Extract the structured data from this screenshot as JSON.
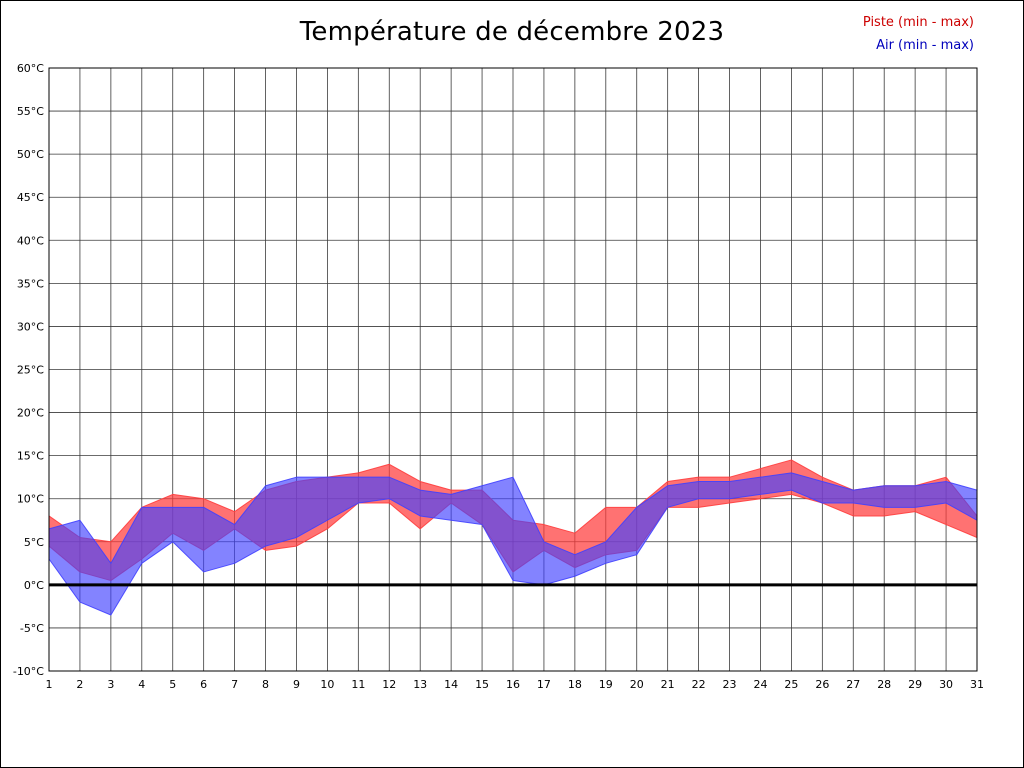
{
  "title": "Température de décembre 2023",
  "legend": {
    "piste": "Piste (min - max)",
    "air": "Air (min - max)",
    "piste_color": "#cc0000",
    "air_color": "#0000bb"
  },
  "chart_data": {
    "type": "area",
    "title": "Température de décembre 2023",
    "xlabel": "",
    "ylabel": "",
    "grid": true,
    "legend_position": "top-right",
    "ylim": [
      -10,
      60
    ],
    "x": [
      1,
      2,
      3,
      4,
      5,
      6,
      7,
      8,
      9,
      10,
      11,
      12,
      13,
      14,
      15,
      16,
      17,
      18,
      19,
      20,
      21,
      22,
      23,
      24,
      25,
      26,
      27,
      28,
      29,
      30,
      31
    ],
    "x_tick_labels": [
      "1",
      "2",
      "3",
      "4",
      "5",
      "6",
      "7",
      "8",
      "9",
      "10",
      "11",
      "12",
      "13",
      "14",
      "15",
      "16",
      "17",
      "18",
      "19",
      "20",
      "21",
      "22",
      "23",
      "24",
      "25",
      "26",
      "27",
      "28",
      "29",
      "30",
      "31"
    ],
    "y_tick_values": [
      60,
      55,
      50,
      45,
      40,
      35,
      30,
      25,
      20,
      15,
      10,
      5,
      0,
      -5,
      -10
    ],
    "y_tick_labels": [
      "60°C",
      "55°C",
      "50°C",
      "45°C",
      "40°C",
      "35°C",
      "30°C",
      "25°C",
      "20°C",
      "15°C",
      "10°C",
      "5°C",
      "0°C",
      "-5°C",
      "-10°C"
    ],
    "zero_line_value": 0,
    "series": [
      {
        "name": "Piste (min - max)",
        "kind": "range-band",
        "color": "#ff3c3c",
        "fill_opacity": 0.72,
        "min": [
          4.5,
          1.5,
          0.5,
          3,
          6,
          4,
          6.5,
          4,
          4.5,
          6.5,
          9.5,
          9.5,
          6.5,
          9.5,
          7,
          1.5,
          4,
          2,
          3.5,
          4,
          9,
          9,
          9.5,
          10,
          10.5,
          9.5,
          8,
          8,
          8.5,
          7,
          5.5
        ],
        "max": [
          8,
          5.5,
          5,
          9,
          10.5,
          10,
          8.5,
          11,
          12,
          12.5,
          13,
          14,
          12,
          11,
          11,
          7.5,
          7,
          6,
          9,
          9,
          12,
          12.5,
          12.5,
          13.5,
          14.5,
          12.5,
          11,
          11.5,
          11.5,
          12.5,
          8
        ]
      },
      {
        "name": "Air (min - max)",
        "kind": "range-band",
        "color": "#4040ff",
        "fill_opacity": 0.65,
        "min": [
          3,
          -2,
          -3.5,
          2.5,
          5,
          1.5,
          2.5,
          4.5,
          5.5,
          7.5,
          9.5,
          10,
          8,
          7.5,
          7,
          0.5,
          0,
          1,
          2.5,
          3.5,
          9,
          10,
          10,
          10.5,
          11,
          9.5,
          9.5,
          9,
          9,
          9.5,
          7.5
        ],
        "max": [
          6.5,
          7.5,
          2.5,
          9,
          9,
          9,
          7,
          11.5,
          12.5,
          12.5,
          12.5,
          12.5,
          11,
          10.5,
          11.5,
          12.5,
          5,
          3.5,
          5,
          9,
          11.5,
          12,
          12,
          12.5,
          13,
          12,
          11,
          11.5,
          11.5,
          12,
          11
        ]
      }
    ],
    "layout": {
      "plot_left": 48,
      "plot_top": 67,
      "plot_right": 976,
      "plot_bottom": 670,
      "grid_color": "#3a3a3a",
      "zero_line_width": 3,
      "tick_font_size": 11
    }
  }
}
